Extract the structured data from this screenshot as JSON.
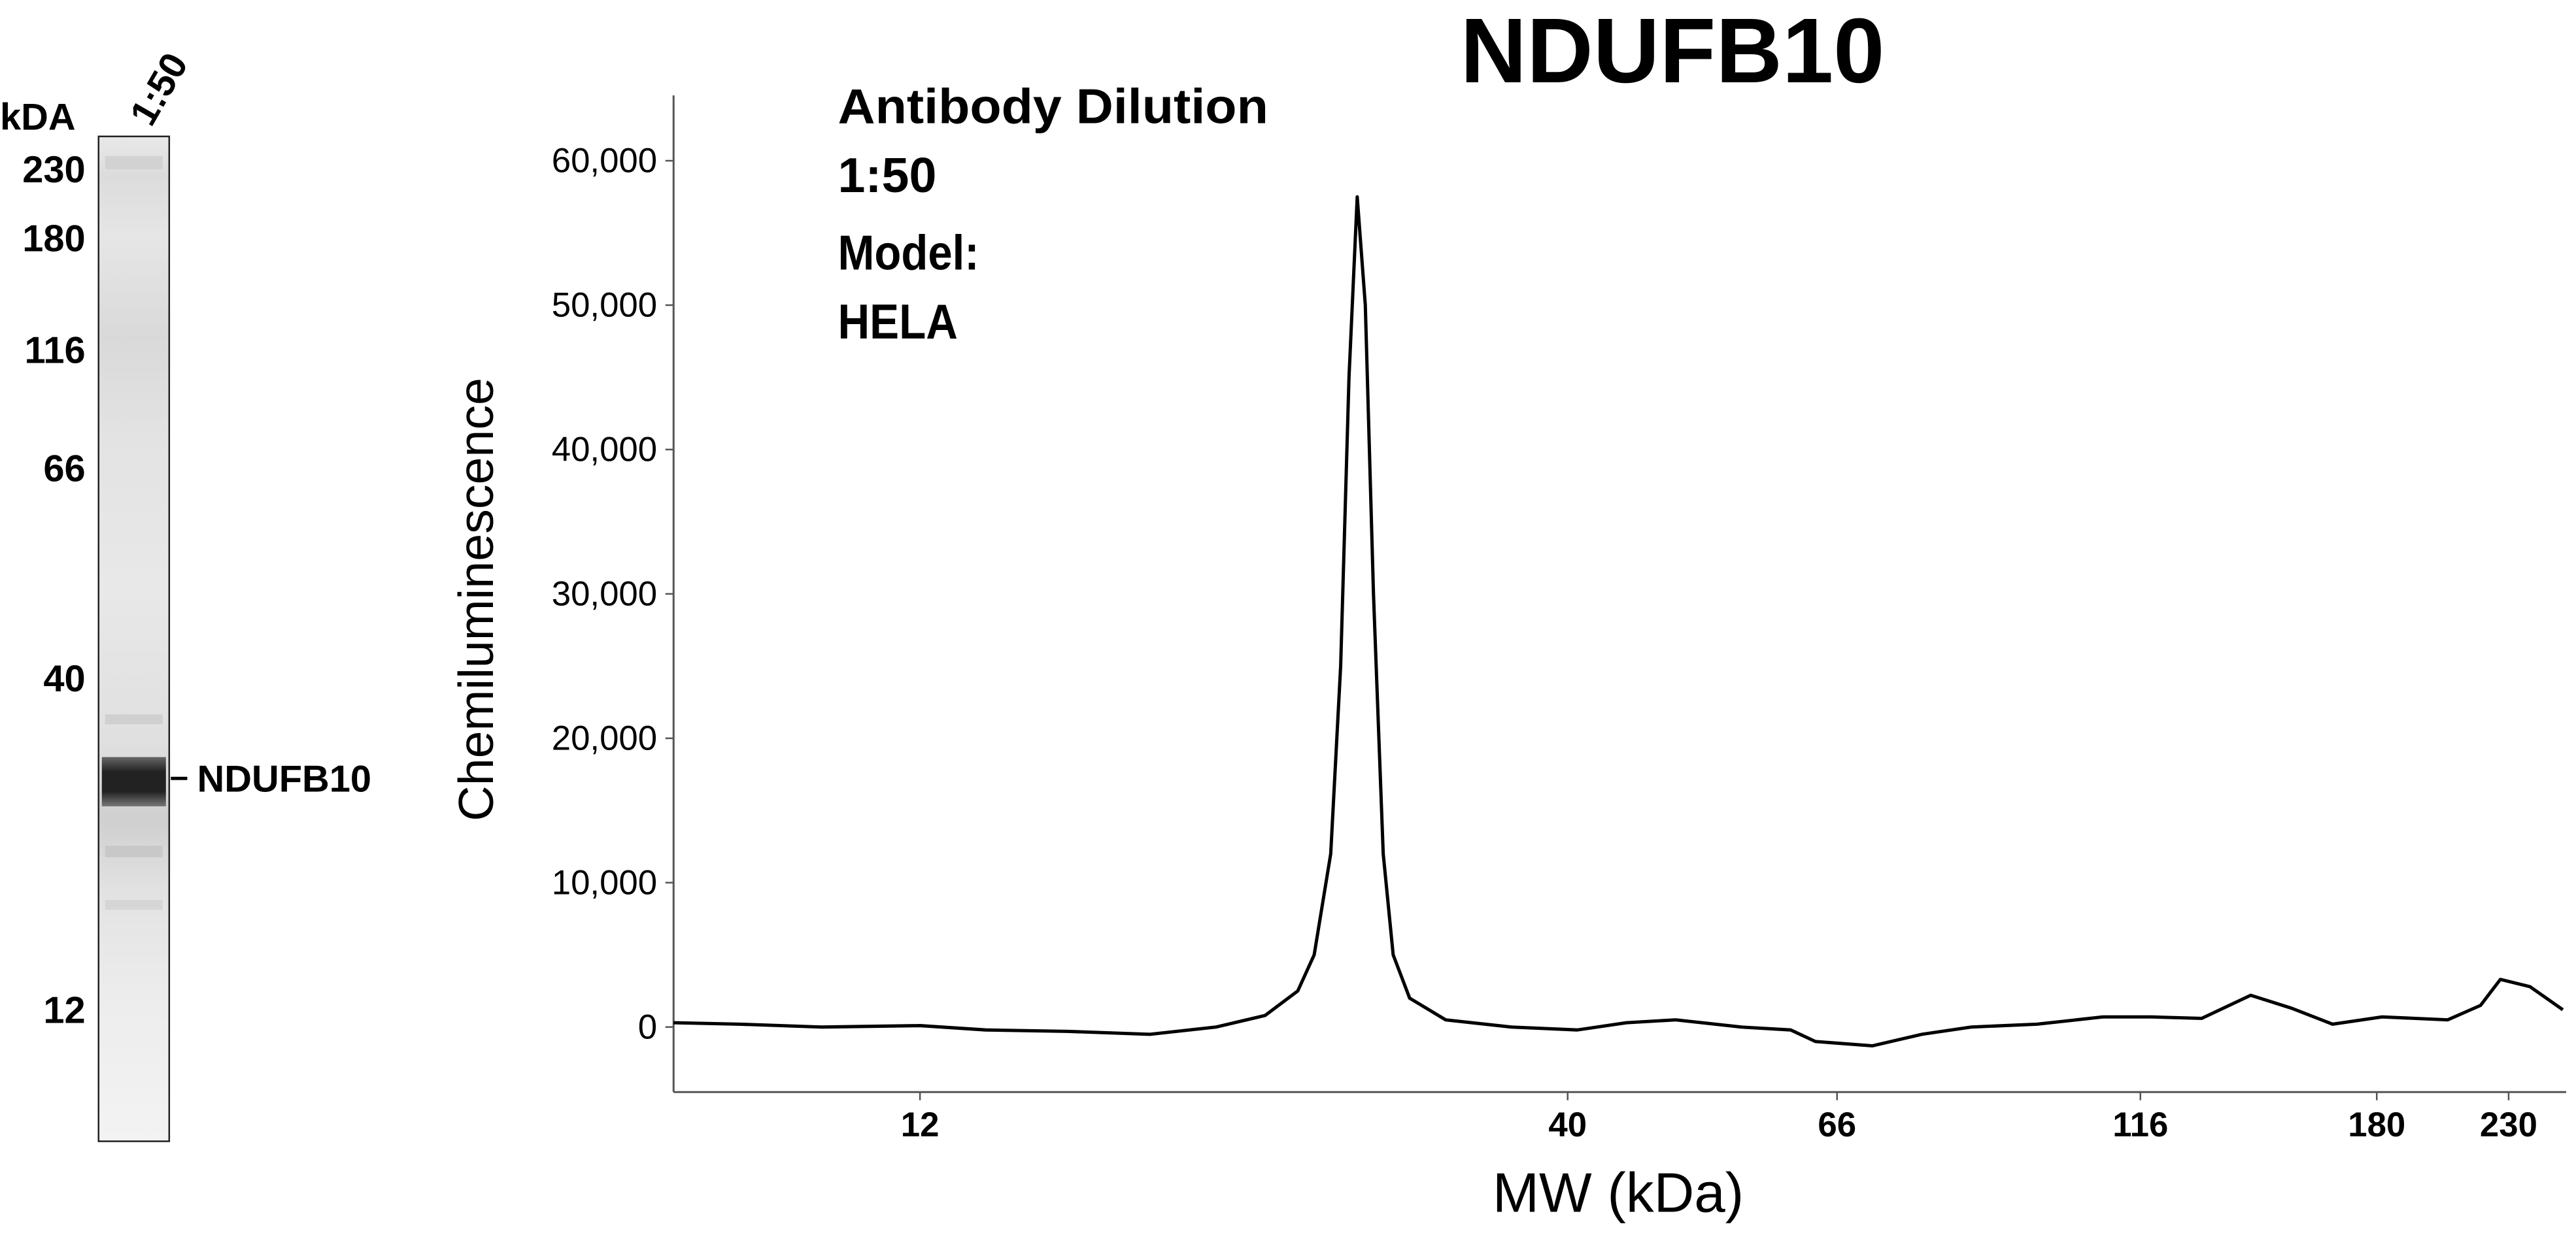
{
  "chart_data": {
    "type": "line",
    "title": "NDUFB10",
    "xlabel": "MW (kDa)",
    "ylabel": "Chemiluminescence",
    "annotations": [
      "Antibody Dilution",
      "1:50",
      "Model:",
      "HELA"
    ],
    "x": [
      7.59,
      8.58,
      9.99,
      12,
      13.56,
      15.79,
      18.4,
      20.8,
      22.79,
      24.22,
      24.97,
      25.75,
      26.23,
      26.64,
      27.05,
      27.46,
      27.88,
      28.39,
      28.92,
      29.82,
      31.88,
      36.02,
      40.72,
      44.63,
      48.9,
      55.25,
      60.55,
      63.4,
      70.5,
      77.3,
      84.7,
      95.7,
      108.2,
      118.5,
      130,
      142.4,
      153.7,
      165.8,
      181.8,
      205.4,
      218.3,
      226.5,
      239.3,
      254.4
    ],
    "values": [
      300,
      200,
      0,
      100,
      -200,
      -300,
      -500,
      0,
      800,
      2500,
      5000,
      12000,
      25000,
      45000,
      57500,
      50000,
      30000,
      12000,
      5000,
      2000,
      500,
      0,
      -200,
      300,
      500,
      0,
      -200,
      -1000,
      -1300,
      -500,
      0,
      200,
      700,
      700,
      600,
      2200,
      1300,
      200,
      700,
      500,
      1500,
      3300,
      2800,
      1200
    ],
    "color": "#000000",
    "xscale": "log",
    "xlim": [
      7.59,
      254.4
    ],
    "xticks": [
      12,
      40,
      66,
      116,
      180,
      230
    ],
    "ylim": [
      -4500,
      64300
    ],
    "yticks": [
      0,
      {
        "value": 10000,
        "label": "10,000"
      },
      {
        "value": 20000,
        "label": "20,000"
      },
      {
        "value": 30000,
        "label": "30,000"
      },
      {
        "value": 40000,
        "label": "40,000"
      },
      {
        "value": 50000,
        "label": "50,000"
      },
      {
        "value": 60000,
        "label": "60,000"
      }
    ]
  },
  "blot": {
    "header": "kDA",
    "lane_label": "1:50",
    "markers": [
      230,
      180,
      116,
      66,
      40,
      12
    ],
    "band_label": "NDUFB10"
  }
}
